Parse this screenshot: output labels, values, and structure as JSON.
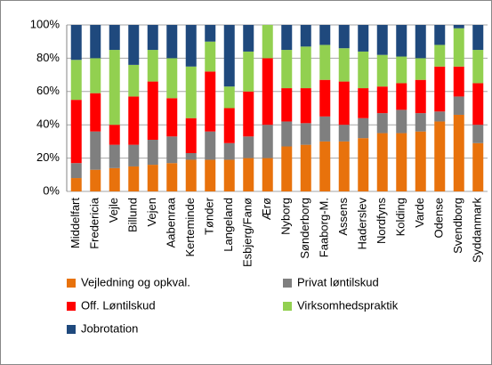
{
  "chart_data": {
    "type": "stacked_bar",
    "categories": [
      "Middelfart",
      "Fredericia",
      "Vejle",
      "Billund",
      "Vejen",
      "Aabenraa",
      "Kerteminde",
      "Tønder",
      "Langeland",
      "Esbjerg/Fanø",
      "Ærø",
      "Nyborg",
      "Sønderborg",
      "Faaborg-M.",
      "Assens",
      "Haderslev",
      "Nordfyns",
      "Kolding",
      "Varde",
      "Odense",
      "Svendborg",
      "Syddanmark"
    ],
    "series": [
      {
        "name": "Vejledning og opkval.",
        "color": "#e8720c",
        "values": [
          8,
          13,
          14,
          15,
          16,
          17,
          19,
          19,
          19,
          20,
          20,
          27,
          28,
          30,
          30,
          32,
          35,
          35,
          36,
          42,
          46,
          29
        ]
      },
      {
        "name": "Privat løntilskud",
        "color": "#7f7f7f",
        "values": [
          9,
          23,
          14,
          13,
          15,
          16,
          4,
          17,
          10,
          13,
          20,
          15,
          13,
          15,
          10,
          12,
          12,
          14,
          11,
          6,
          11,
          11
        ]
      },
      {
        "name": "Off. Løntilskud",
        "color": "#ff0000",
        "values": [
          38,
          23,
          12,
          29,
          35,
          23,
          21,
          36,
          21,
          27,
          40,
          20,
          21,
          22,
          26,
          18,
          16,
          16,
          20,
          27,
          18,
          25
        ]
      },
      {
        "name": "Virksomhedspraktik",
        "color": "#92d050",
        "values": [
          24,
          21,
          45,
          19,
          19,
          24,
          31,
          18,
          13,
          24,
          20,
          23,
          25,
          21,
          20,
          22,
          19,
          16,
          13,
          13,
          23,
          20
        ]
      },
      {
        "name": "Jobrotation",
        "color": "#1f497d",
        "values": [
          21,
          20,
          15,
          24,
          15,
          20,
          25,
          10,
          37,
          16,
          0,
          15,
          13,
          12,
          14,
          16,
          18,
          19,
          20,
          12,
          2,
          15
        ]
      }
    ],
    "ylim": [
      0,
      100
    ],
    "yticks": [
      {
        "value": 0,
        "label": "0%"
      },
      {
        "value": 20,
        "label": "20%"
      },
      {
        "value": 40,
        "label": "40%"
      },
      {
        "value": 60,
        "label": "60%"
      },
      {
        "value": 80,
        "label": "80%"
      },
      {
        "value": 100,
        "label": "100%"
      }
    ],
    "grid": true
  }
}
